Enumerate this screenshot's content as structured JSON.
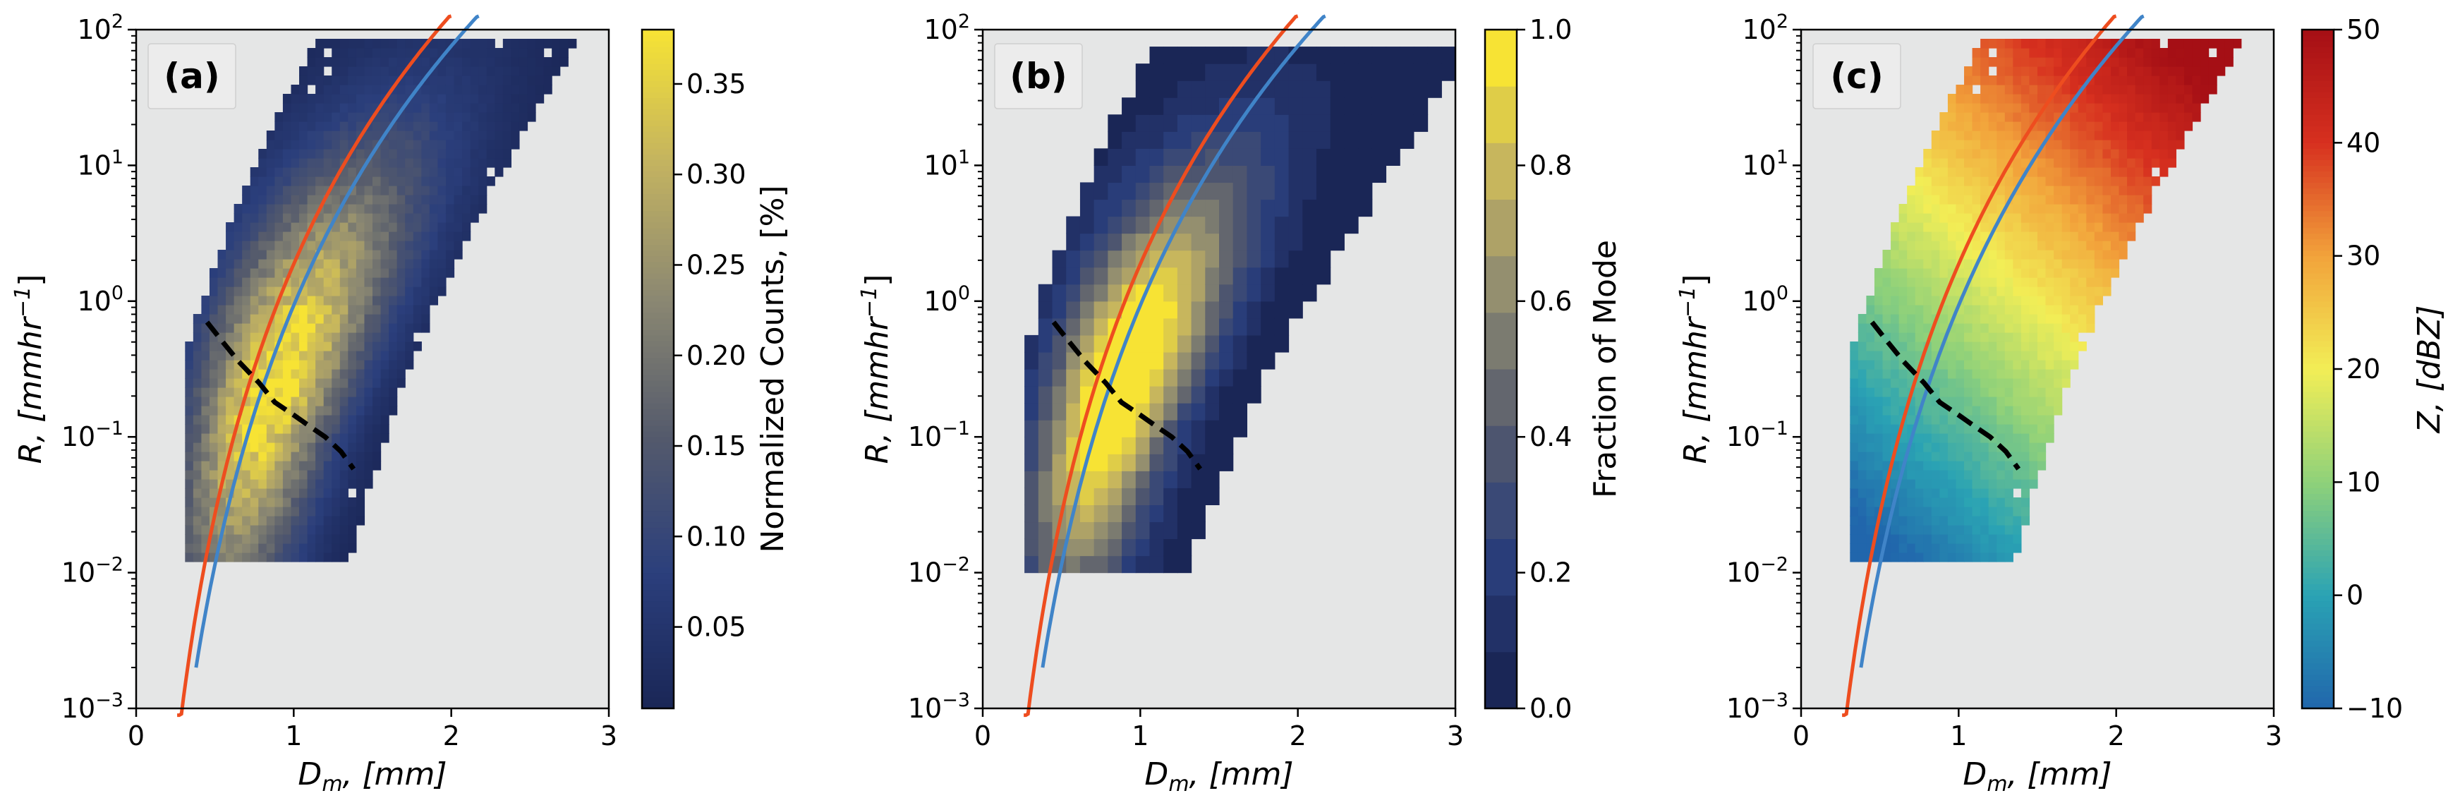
{
  "chart_data": [
    {
      "type": "heatmap",
      "panel_label": "(a)",
      "xlabel_sym": "D",
      "xlabel_sub": "m",
      "xlabel_rest": ", [mm]",
      "ylabel_sym": "R",
      "ylabel_rest": ", [mmhr",
      "ylabel_exp": "−1",
      "ylabel_close": "]",
      "xlim": [
        0,
        3
      ],
      "ylim_log10": [
        -3,
        2
      ],
      "x_ticks": [
        {
          "v": 0,
          "label": "0"
        },
        {
          "v": 1,
          "label": "1"
        },
        {
          "v": 2,
          "label": "2"
        },
        {
          "v": 3,
          "label": "3"
        }
      ],
      "y_ticks": [
        {
          "e": -3,
          "base": "10",
          "exp": "−3"
        },
        {
          "e": -2,
          "base": "10",
          "exp": "−2"
        },
        {
          "e": -1,
          "base": "10",
          "exp": "−1"
        },
        {
          "e": 0,
          "base": "10",
          "exp": "0"
        },
        {
          "e": 1,
          "base": "10",
          "exp": "1"
        },
        {
          "e": 2,
          "base": "10",
          "exp": "2"
        }
      ],
      "colorbar": {
        "label": "Normalized Counts, [%]",
        "min": 0.005,
        "max": 0.38,
        "ticks": [
          {
            "v": 0.05,
            "label": "0.05"
          },
          {
            "v": 0.1,
            "label": "0.10"
          },
          {
            "v": 0.15,
            "label": "0.15"
          },
          {
            "v": 0.2,
            "label": "0.20"
          },
          {
            "v": 0.25,
            "label": "0.25"
          },
          {
            "v": 0.3,
            "label": "0.30"
          },
          {
            "v": 0.35,
            "label": "0.35"
          }
        ],
        "colors": [
          "#1a2656",
          "#2b3f7c",
          "#545a6c",
          "#8a8772",
          "#c2b261",
          "#f7e334"
        ]
      },
      "field": {
        "kind": "counts",
        "peak": 0.38
      }
    },
    {
      "type": "heatmap",
      "panel_label": "(b)",
      "xlabel_sym": "D",
      "xlabel_sub": "m",
      "xlabel_rest": ", [mm]",
      "ylabel_sym": "R",
      "ylabel_rest": ", [mmhr",
      "ylabel_exp": "−1",
      "ylabel_close": "]",
      "xlim": [
        0,
        3
      ],
      "ylim_log10": [
        -3,
        2
      ],
      "x_ticks": [
        {
          "v": 0,
          "label": "0"
        },
        {
          "v": 1,
          "label": "1"
        },
        {
          "v": 2,
          "label": "2"
        },
        {
          "v": 3,
          "label": "3"
        }
      ],
      "y_ticks": [
        {
          "e": -3,
          "base": "10",
          "exp": "−3"
        },
        {
          "e": -2,
          "base": "10",
          "exp": "−2"
        },
        {
          "e": -1,
          "base": "10",
          "exp": "−1"
        },
        {
          "e": 0,
          "base": "10",
          "exp": "0"
        },
        {
          "e": 1,
          "base": "10",
          "exp": "1"
        },
        {
          "e": 2,
          "base": "10",
          "exp": "2"
        }
      ],
      "colorbar": {
        "label": "Fraction of Mode",
        "min": 0.0,
        "max": 1.0,
        "levels": 12,
        "ticks": [
          {
            "v": 0.0,
            "label": "0.0"
          },
          {
            "v": 0.2,
            "label": "0.2"
          },
          {
            "v": 0.4,
            "label": "0.4"
          },
          {
            "v": 0.6,
            "label": "0.6"
          },
          {
            "v": 0.8,
            "label": "0.8"
          },
          {
            "v": 1.0,
            "label": "1.0"
          }
        ],
        "colors": [
          "#1a2656",
          "#2b3f7c",
          "#545a6c",
          "#8a8772",
          "#c2b261",
          "#f7e334"
        ]
      },
      "field": {
        "kind": "fraction",
        "peak": 1.0
      }
    },
    {
      "type": "heatmap",
      "panel_label": "(c)",
      "xlabel_sym": "D",
      "xlabel_sub": "m",
      "xlabel_rest": ", [mm]",
      "ylabel_sym": "R",
      "ylabel_rest": ", [mmhr",
      "ylabel_exp": "−1",
      "ylabel_close": "]",
      "xlim": [
        0,
        3
      ],
      "ylim_log10": [
        -3,
        2
      ],
      "x_ticks": [
        {
          "v": 0,
          "label": "0"
        },
        {
          "v": 1,
          "label": "1"
        },
        {
          "v": 2,
          "label": "2"
        },
        {
          "v": 3,
          "label": "3"
        }
      ],
      "y_ticks": [
        {
          "e": -3,
          "base": "10",
          "exp": "−3"
        },
        {
          "e": -2,
          "base": "10",
          "exp": "−2"
        },
        {
          "e": -1,
          "base": "10",
          "exp": "−1"
        },
        {
          "e": 0,
          "base": "10",
          "exp": "0"
        },
        {
          "e": 1,
          "base": "10",
          "exp": "1"
        },
        {
          "e": 2,
          "base": "10",
          "exp": "2"
        }
      ],
      "colorbar": {
        "label_sym": "Z",
        "label_rest": ", [dBZ]",
        "min": -10,
        "max": 50,
        "ticks": [
          {
            "v": -10,
            "label": "−10"
          },
          {
            "v": 0,
            "label": "0"
          },
          {
            "v": 10,
            "label": "10"
          },
          {
            "v": 20,
            "label": "20"
          },
          {
            "v": 30,
            "label": "30"
          },
          {
            "v": 40,
            "label": "40"
          },
          {
            "v": 50,
            "label": "50"
          }
        ],
        "colors": [
          "#2166ac",
          "#2aa3b4",
          "#8fd17a",
          "#f2ee56",
          "#f2a33b",
          "#d7301f",
          "#a50f15"
        ]
      },
      "field": {
        "kind": "reflectivity"
      }
    }
  ],
  "overlays": {
    "red_curve": {
      "color": "#ee4d1f",
      "a": 0.21,
      "b": 1.33,
      "x_start": 0.26
    },
    "blue_curve": {
      "color": "#4084c8",
      "a": 0.33,
      "b": 1.38,
      "x_start": 0.38
    },
    "dashed_curve": {
      "color": "#000000",
      "points": [
        [
          0.45,
          0.7
        ],
        [
          0.55,
          0.5
        ],
        [
          0.65,
          0.36
        ],
        [
          0.78,
          0.25
        ],
        [
          0.88,
          0.18
        ],
        [
          1.0,
          0.145
        ],
        [
          1.1,
          0.12
        ],
        [
          1.2,
          0.1
        ],
        [
          1.3,
          0.078
        ],
        [
          1.38,
          0.058
        ]
      ]
    }
  },
  "colors": {
    "axes_background": "#e5e6e6",
    "panel_label_box": "#ececec"
  }
}
